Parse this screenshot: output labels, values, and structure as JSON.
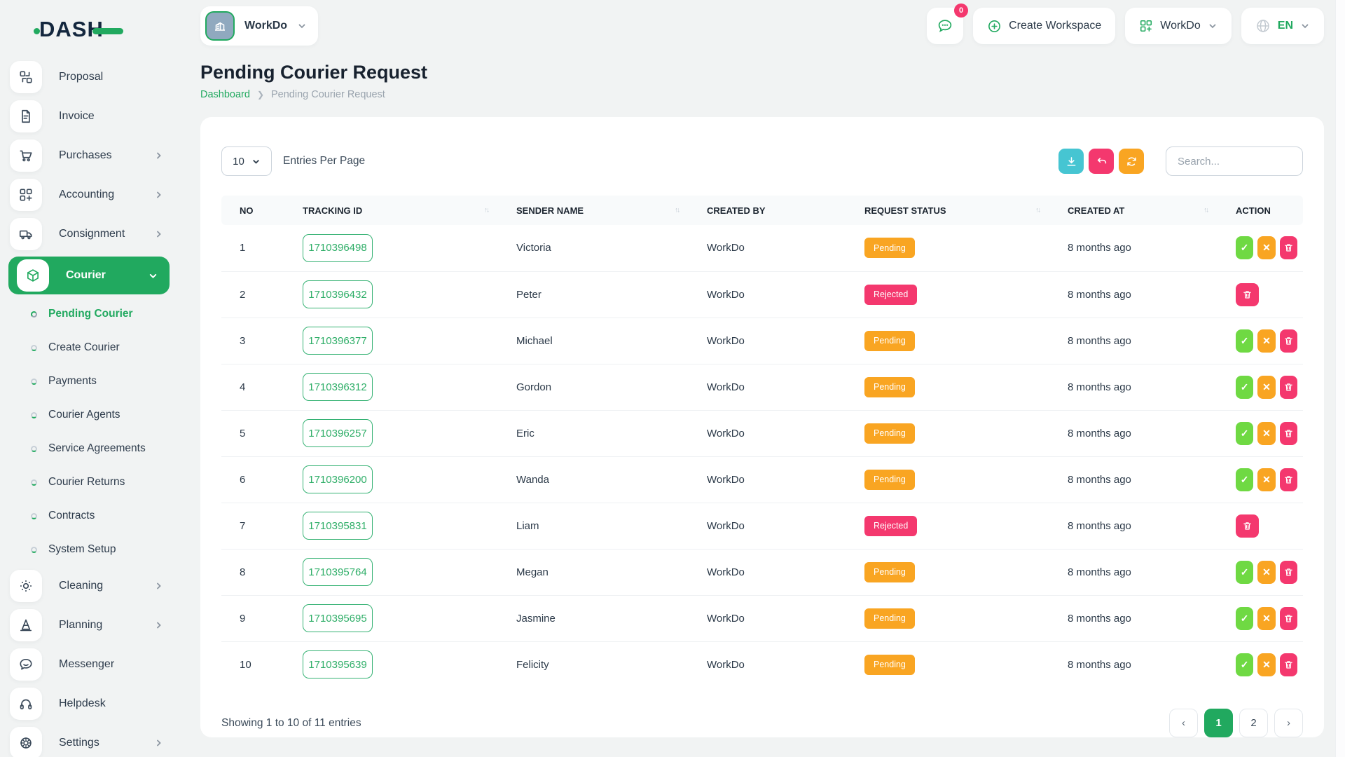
{
  "brand": {
    "name": "DASH"
  },
  "header": {
    "workspace": {
      "label": "WorkDo"
    },
    "messages_badge": "0",
    "create_workspace": "Create Workspace",
    "workspace_menu": "WorkDo",
    "language": "EN"
  },
  "sidebar": {
    "items": [
      {
        "label": "Proposal",
        "icon": "proposal-icon"
      },
      {
        "label": "Invoice",
        "icon": "invoice-icon"
      },
      {
        "label": "Purchases",
        "icon": "purchases-icon",
        "chevron": "right"
      },
      {
        "label": "Accounting",
        "icon": "accounting-icon",
        "chevron": "right"
      },
      {
        "label": "Consignment",
        "icon": "consignment-icon",
        "chevron": "right"
      },
      {
        "label": "Courier",
        "icon": "courier-icon",
        "chevron": "down",
        "active": true,
        "children": [
          {
            "label": "Pending Courier",
            "active": true
          },
          {
            "label": "Create Courier"
          },
          {
            "label": "Payments"
          },
          {
            "label": "Courier Agents"
          },
          {
            "label": "Service Agreements"
          },
          {
            "label": "Courier Returns"
          },
          {
            "label": "Contracts"
          },
          {
            "label": "System Setup"
          }
        ]
      },
      {
        "label": "Cleaning",
        "icon": "cleaning-icon",
        "chevron": "right"
      },
      {
        "label": "Planning",
        "icon": "planning-icon",
        "chevron": "right"
      },
      {
        "label": "Messenger",
        "icon": "messenger-icon"
      },
      {
        "label": "Helpdesk",
        "icon": "helpdesk-icon"
      },
      {
        "label": "Settings",
        "icon": "settings-icon",
        "chevron": "right"
      }
    ]
  },
  "page": {
    "title": "Pending Courier Request",
    "breadcrumb": {
      "home": "Dashboard",
      "current": "Pending Courier Request"
    }
  },
  "toolbar": {
    "entries_value": "10",
    "entries_label": "Entries Per Page",
    "search_placeholder": "Search...",
    "buttons": [
      "download",
      "undo",
      "refresh"
    ]
  },
  "table": {
    "columns": [
      {
        "label": "NO"
      },
      {
        "label": "TRACKING ID",
        "sortable": true
      },
      {
        "label": "SENDER NAME",
        "sortable": true
      },
      {
        "label": "CREATED BY"
      },
      {
        "label": "REQUEST STATUS",
        "sortable": true
      },
      {
        "label": "CREATED AT",
        "sortable": true
      },
      {
        "label": "ACTION"
      }
    ],
    "rows": [
      {
        "no": "1",
        "tracking_id": "1710396498",
        "sender": "Victoria",
        "created_by": "WorkDo",
        "status": "Pending",
        "created_at": "8 months ago",
        "actions": [
          "accept",
          "reject",
          "delete"
        ]
      },
      {
        "no": "2",
        "tracking_id": "1710396432",
        "sender": "Peter",
        "created_by": "WorkDo",
        "status": "Rejected",
        "created_at": "8 months ago",
        "actions": [
          "delete"
        ]
      },
      {
        "no": "3",
        "tracking_id": "1710396377",
        "sender": "Michael",
        "created_by": "WorkDo",
        "status": "Pending",
        "created_at": "8 months ago",
        "actions": [
          "accept",
          "reject",
          "delete"
        ]
      },
      {
        "no": "4",
        "tracking_id": "1710396312",
        "sender": "Gordon",
        "created_by": "WorkDo",
        "status": "Pending",
        "created_at": "8 months ago",
        "actions": [
          "accept",
          "reject",
          "delete"
        ]
      },
      {
        "no": "5",
        "tracking_id": "1710396257",
        "sender": "Eric",
        "created_by": "WorkDo",
        "status": "Pending",
        "created_at": "8 months ago",
        "actions": [
          "accept",
          "reject",
          "delete"
        ]
      },
      {
        "no": "6",
        "tracking_id": "1710396200",
        "sender": "Wanda",
        "created_by": "WorkDo",
        "status": "Pending",
        "created_at": "8 months ago",
        "actions": [
          "accept",
          "reject",
          "delete"
        ]
      },
      {
        "no": "7",
        "tracking_id": "1710395831",
        "sender": "Liam",
        "created_by": "WorkDo",
        "status": "Rejected",
        "created_at": "8 months ago",
        "actions": [
          "delete"
        ]
      },
      {
        "no": "8",
        "tracking_id": "1710395764",
        "sender": "Megan",
        "created_by": "WorkDo",
        "status": "Pending",
        "created_at": "8 months ago",
        "actions": [
          "accept",
          "reject",
          "delete"
        ]
      },
      {
        "no": "9",
        "tracking_id": "1710395695",
        "sender": "Jasmine",
        "created_by": "WorkDo",
        "status": "Pending",
        "created_at": "8 months ago",
        "actions": [
          "accept",
          "reject",
          "delete"
        ]
      },
      {
        "no": "10",
        "tracking_id": "1710395639",
        "sender": "Felicity",
        "created_by": "WorkDo",
        "status": "Pending",
        "created_at": "8 months ago",
        "actions": [
          "accept",
          "reject",
          "delete"
        ]
      }
    ]
  },
  "footer": {
    "summary": "Showing 1 to 10 of 11 entries",
    "pages": [
      "1",
      "2"
    ],
    "active_page": "1"
  },
  "colors": {
    "green": "#21a95f",
    "lime": "#6fd943",
    "orange": "#f9a522",
    "pink": "#f4386e",
    "teal": "#46c5d2",
    "navy": "#1d2b3c"
  }
}
